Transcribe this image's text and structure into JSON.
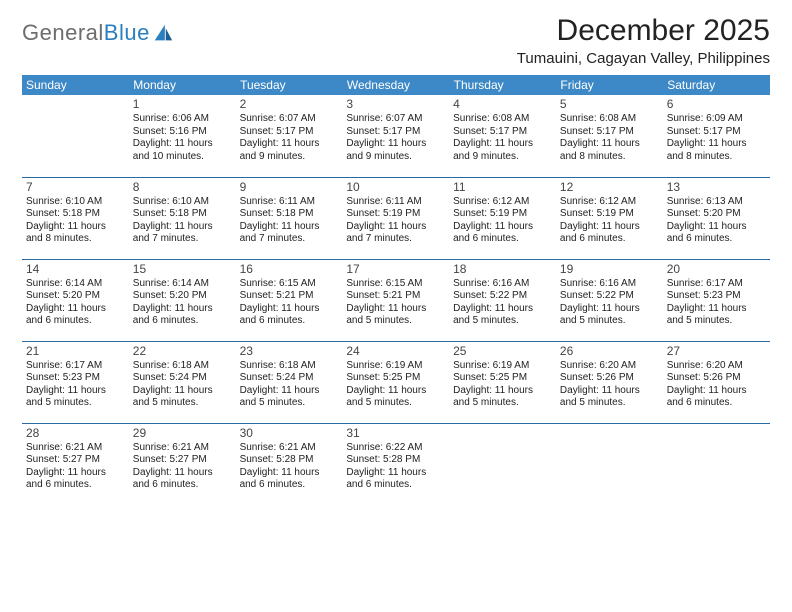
{
  "brand": {
    "part1": "General",
    "part2": "Blue"
  },
  "colors": {
    "header_bg": "#3d88c6",
    "header_text": "#ffffff",
    "row_border": "#2b6aa0",
    "logo_gray": "#6d6d6d",
    "logo_blue": "#2b7fbf"
  },
  "title": "December 2025",
  "location": "Tumauini, Cagayan Valley, Philippines",
  "weekdays": [
    "Sunday",
    "Monday",
    "Tuesday",
    "Wednesday",
    "Thursday",
    "Friday",
    "Saturday"
  ],
  "weeks": [
    [
      null,
      {
        "d": "1",
        "sr": "6:06 AM",
        "ss": "5:16 PM",
        "dl": "11 hours and 10 minutes."
      },
      {
        "d": "2",
        "sr": "6:07 AM",
        "ss": "5:17 PM",
        "dl": "11 hours and 9 minutes."
      },
      {
        "d": "3",
        "sr": "6:07 AM",
        "ss": "5:17 PM",
        "dl": "11 hours and 9 minutes."
      },
      {
        "d": "4",
        "sr": "6:08 AM",
        "ss": "5:17 PM",
        "dl": "11 hours and 9 minutes."
      },
      {
        "d": "5",
        "sr": "6:08 AM",
        "ss": "5:17 PM",
        "dl": "11 hours and 8 minutes."
      },
      {
        "d": "6",
        "sr": "6:09 AM",
        "ss": "5:17 PM",
        "dl": "11 hours and 8 minutes."
      }
    ],
    [
      {
        "d": "7",
        "sr": "6:10 AM",
        "ss": "5:18 PM",
        "dl": "11 hours and 8 minutes."
      },
      {
        "d": "8",
        "sr": "6:10 AM",
        "ss": "5:18 PM",
        "dl": "11 hours and 7 minutes."
      },
      {
        "d": "9",
        "sr": "6:11 AM",
        "ss": "5:18 PM",
        "dl": "11 hours and 7 minutes."
      },
      {
        "d": "10",
        "sr": "6:11 AM",
        "ss": "5:19 PM",
        "dl": "11 hours and 7 minutes."
      },
      {
        "d": "11",
        "sr": "6:12 AM",
        "ss": "5:19 PM",
        "dl": "11 hours and 6 minutes."
      },
      {
        "d": "12",
        "sr": "6:12 AM",
        "ss": "5:19 PM",
        "dl": "11 hours and 6 minutes."
      },
      {
        "d": "13",
        "sr": "6:13 AM",
        "ss": "5:20 PM",
        "dl": "11 hours and 6 minutes."
      }
    ],
    [
      {
        "d": "14",
        "sr": "6:14 AM",
        "ss": "5:20 PM",
        "dl": "11 hours and 6 minutes."
      },
      {
        "d": "15",
        "sr": "6:14 AM",
        "ss": "5:20 PM",
        "dl": "11 hours and 6 minutes."
      },
      {
        "d": "16",
        "sr": "6:15 AM",
        "ss": "5:21 PM",
        "dl": "11 hours and 6 minutes."
      },
      {
        "d": "17",
        "sr": "6:15 AM",
        "ss": "5:21 PM",
        "dl": "11 hours and 5 minutes."
      },
      {
        "d": "18",
        "sr": "6:16 AM",
        "ss": "5:22 PM",
        "dl": "11 hours and 5 minutes."
      },
      {
        "d": "19",
        "sr": "6:16 AM",
        "ss": "5:22 PM",
        "dl": "11 hours and 5 minutes."
      },
      {
        "d": "20",
        "sr": "6:17 AM",
        "ss": "5:23 PM",
        "dl": "11 hours and 5 minutes."
      }
    ],
    [
      {
        "d": "21",
        "sr": "6:17 AM",
        "ss": "5:23 PM",
        "dl": "11 hours and 5 minutes."
      },
      {
        "d": "22",
        "sr": "6:18 AM",
        "ss": "5:24 PM",
        "dl": "11 hours and 5 minutes."
      },
      {
        "d": "23",
        "sr": "6:18 AM",
        "ss": "5:24 PM",
        "dl": "11 hours and 5 minutes."
      },
      {
        "d": "24",
        "sr": "6:19 AM",
        "ss": "5:25 PM",
        "dl": "11 hours and 5 minutes."
      },
      {
        "d": "25",
        "sr": "6:19 AM",
        "ss": "5:25 PM",
        "dl": "11 hours and 5 minutes."
      },
      {
        "d": "26",
        "sr": "6:20 AM",
        "ss": "5:26 PM",
        "dl": "11 hours and 5 minutes."
      },
      {
        "d": "27",
        "sr": "6:20 AM",
        "ss": "5:26 PM",
        "dl": "11 hours and 6 minutes."
      }
    ],
    [
      {
        "d": "28",
        "sr": "6:21 AM",
        "ss": "5:27 PM",
        "dl": "11 hours and 6 minutes."
      },
      {
        "d": "29",
        "sr": "6:21 AM",
        "ss": "5:27 PM",
        "dl": "11 hours and 6 minutes."
      },
      {
        "d": "30",
        "sr": "6:21 AM",
        "ss": "5:28 PM",
        "dl": "11 hours and 6 minutes."
      },
      {
        "d": "31",
        "sr": "6:22 AM",
        "ss": "5:28 PM",
        "dl": "11 hours and 6 minutes."
      },
      null,
      null,
      null
    ]
  ]
}
